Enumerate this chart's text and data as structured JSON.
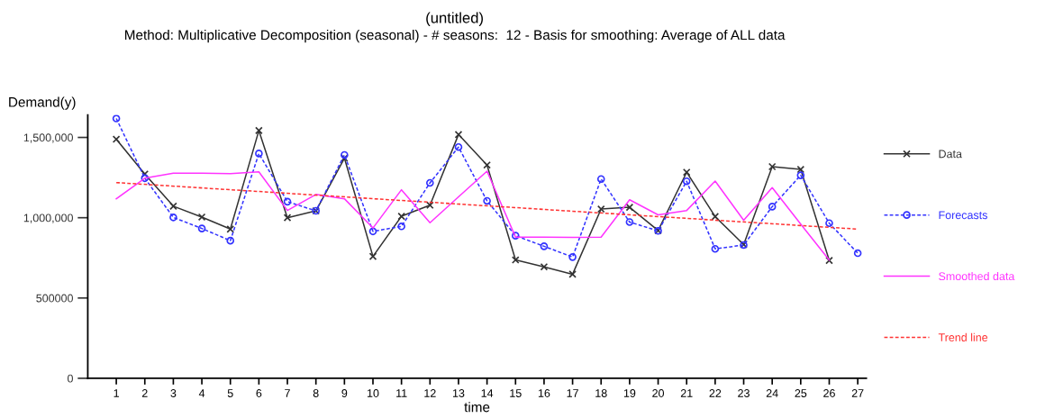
{
  "chart_data": {
    "type": "line",
    "title": "(untitled)",
    "subtitle": "Method: Multiplicative Decomposition (seasonal) - # seasons:  12 - Basis for smoothing: Average of ALL data",
    "xlabel": "time",
    "ylabel": "Demand(y)",
    "x": [
      1,
      2,
      3,
      4,
      5,
      6,
      7,
      8,
      9,
      10,
      11,
      12,
      13,
      14,
      15,
      16,
      17,
      18,
      19,
      20,
      21,
      22,
      23,
      24,
      25,
      26
    ],
    "series": [
      {
        "name": "Data",
        "color": "#333333",
        "marker": "cross",
        "line_style": "solid",
        "values": [
          1489000,
          1272000,
          1072000,
          1004000,
          929000,
          1543000,
          1000000,
          1043000,
          1371000,
          759000,
          1009000,
          1078000,
          1518000,
          1328000,
          737000,
          694000,
          648000,
          1054000,
          1065000,
          920000,
          1283000,
          1007000,
          833000,
          1318000,
          1301000,
          734000
        ]
      },
      {
        "name": "Forecasts",
        "color": "#3333ff",
        "marker": "circle",
        "line_style": "dashed",
        "x": [
          1,
          2,
          3,
          4,
          5,
          6,
          7,
          8,
          9,
          10,
          11,
          12,
          13,
          14,
          15,
          16,
          17,
          18,
          19,
          20,
          21,
          22,
          23,
          24,
          25,
          26,
          27
        ],
        "values": [
          1618000,
          1246000,
          1002000,
          933000,
          857000,
          1400000,
          1100000,
          1043000,
          1391000,
          915000,
          946000,
          1217000,
          1440000,
          1105000,
          888000,
          822000,
          755000,
          1241000,
          973000,
          918000,
          1227000,
          806000,
          830000,
          1069000,
          1264000,
          966000,
          779000
        ]
      },
      {
        "name": "Smoothed data",
        "color": "#ff33ff",
        "marker": "none",
        "line_style": "solid",
        "values": [
          1118000,
          1246000,
          1277000,
          1277000,
          1274000,
          1286000,
          1045000,
          1145000,
          1118000,
          936000,
          1174000,
          969000,
          1130000,
          1290000,
          879000,
          879000,
          878000,
          879000,
          1112000,
          1018000,
          1045000,
          1228000,
          984000,
          1187000,
          960000,
          737000
        ]
      },
      {
        "name": "Trend line",
        "color": "#ff3333",
        "marker": "none",
        "line_style": "dashed",
        "x": [
          1,
          27
        ],
        "values": [
          1219000,
          929000
        ]
      }
    ],
    "xlim": [
      0,
      27.3
    ],
    "xticks": [
      1,
      2,
      3,
      4,
      5,
      6,
      7,
      8,
      9,
      10,
      11,
      12,
      13,
      14,
      15,
      16,
      17,
      18,
      19,
      20,
      21,
      22,
      23,
      24,
      25,
      26,
      27
    ],
    "ylim": [
      0,
      1640000
    ],
    "yticks": [
      0,
      500000,
      {
        "value": 1000000,
        "label": "1,000,000"
      },
      {
        "value": 1500000,
        "label": "1,500,000"
      }
    ],
    "grid": false,
    "legend": "right"
  }
}
